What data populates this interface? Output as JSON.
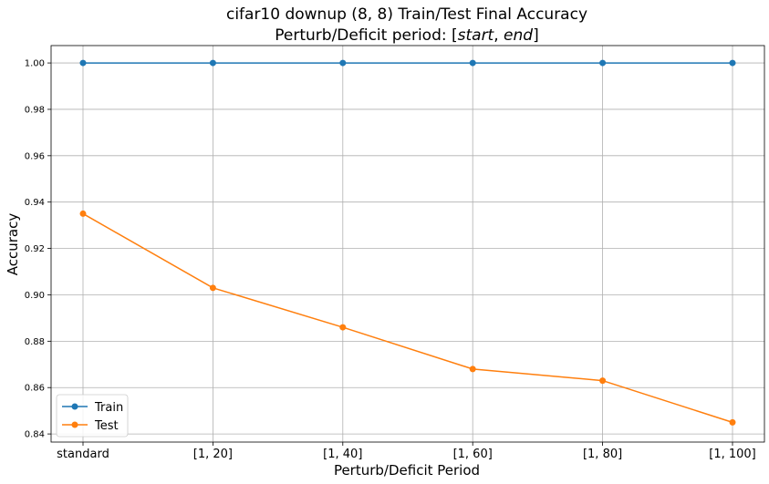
{
  "chart_data": {
    "type": "line",
    "title": "cifar10 downup (8, 8) Train/Test Final Accuracy",
    "subtitle_prefix": "Perturb/Deficit period: [",
    "subtitle_start": "start",
    "subtitle_sep": ", ",
    "subtitle_end": "end",
    "subtitle_suffix": "]",
    "xlabel": "Perturb/Deficit Period",
    "ylabel": "Accuracy",
    "categories": [
      "standard",
      "[1, 20]",
      "[1, 40]",
      "[1, 60]",
      "[1, 80]",
      "[1, 100]"
    ],
    "yticks": [
      "0.84",
      "0.86",
      "0.88",
      "0.90",
      "0.92",
      "0.94",
      "0.96",
      "0.98",
      "1.00"
    ],
    "ylim": [
      0.8365,
      1.0075
    ],
    "grid": true,
    "legend_position": "lower-left",
    "series": [
      {
        "name": "Train",
        "color": "#1f77b4",
        "values": [
          1.0,
          1.0,
          1.0,
          1.0,
          1.0,
          1.0
        ]
      },
      {
        "name": "Test",
        "color": "#ff7f0e",
        "values": [
          0.935,
          0.903,
          0.886,
          0.868,
          0.863,
          0.845
        ]
      }
    ]
  }
}
